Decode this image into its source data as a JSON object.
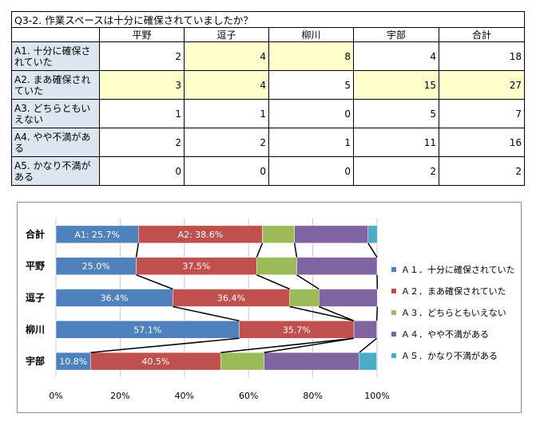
{
  "table": {
    "title": "Q3-2. 作業スペースは十分に確保されていましたか？",
    "columns": [
      "平野",
      "逗子",
      "柳川",
      "宇部",
      "合計"
    ],
    "rows": [
      {
        "label": "A1. 十分に確保されていた",
        "values": [
          "2",
          "4",
          "8",
          "4",
          "18"
        ]
      },
      {
        "label": "A2. まあ確保されていた",
        "values": [
          "3",
          "4",
          "5",
          "15",
          "27"
        ]
      },
      {
        "label": "A3. どちらともいえない",
        "values": [
          "1",
          "1",
          "0",
          "5",
          "7"
        ]
      },
      {
        "label": "A4. やや不満がある",
        "values": [
          "2",
          "2",
          "1",
          "11",
          "16"
        ]
      },
      {
        "label": "A5. かなり不満がある",
        "values": [
          "0",
          "0",
          "0",
          "2",
          "2"
        ]
      }
    ]
  },
  "chart_data": {
    "type": "bar",
    "orientation": "horizontal",
    "stacked": "percent",
    "categories": [
      "合計",
      "平野",
      "逗子",
      "柳川",
      "宇部"
    ],
    "series": [
      {
        "name": "Ａ１．十分に確保されていた",
        "color": "#4f81bd",
        "values": [
          25.7,
          25.0,
          36.4,
          57.1,
          10.8
        ]
      },
      {
        "name": "Ａ２．まあ確保されていた",
        "color": "#c0504d",
        "values": [
          38.6,
          37.5,
          36.4,
          35.7,
          40.5
        ]
      },
      {
        "name": "Ａ３．どちらともいえない",
        "color": "#9bbb59",
        "values": [
          10.0,
          12.5,
          9.1,
          0.0,
          13.5
        ]
      },
      {
        "name": "Ａ４．やや不満がある",
        "color": "#8064a2",
        "values": [
          22.9,
          25.0,
          18.2,
          7.1,
          29.7
        ]
      },
      {
        "name": "Ａ５．かなり不満がある",
        "color": "#4bacc6",
        "values": [
          2.9,
          0.0,
          0.0,
          0.0,
          5.4
        ]
      }
    ],
    "data_labels": [
      {
        "category": "合計",
        "series": 0,
        "text": "A1: 25.7%"
      },
      {
        "category": "合計",
        "series": 1,
        "text": "A2: 38.6%"
      },
      {
        "category": "平野",
        "series": 0,
        "text": "25.0%"
      },
      {
        "category": "平野",
        "series": 1,
        "text": "37.5%"
      },
      {
        "category": "逗子",
        "series": 0,
        "text": "36.4%"
      },
      {
        "category": "逗子",
        "series": 1,
        "text": "36.4%"
      },
      {
        "category": "柳川",
        "series": 0,
        "text": "57.1%"
      },
      {
        "category": "柳川",
        "series": 1,
        "text": "35.7%"
      },
      {
        "category": "宇部",
        "series": 0,
        "text": "10.8%"
      },
      {
        "category": "宇部",
        "series": 1,
        "text": "40.5%"
      }
    ],
    "x_ticks": [
      "0%",
      "20%",
      "40%",
      "60%",
      "80%",
      "100%"
    ],
    "xlim": [
      0,
      100
    ],
    "series_lines": true,
    "grid": true,
    "legend_position": "right"
  }
}
